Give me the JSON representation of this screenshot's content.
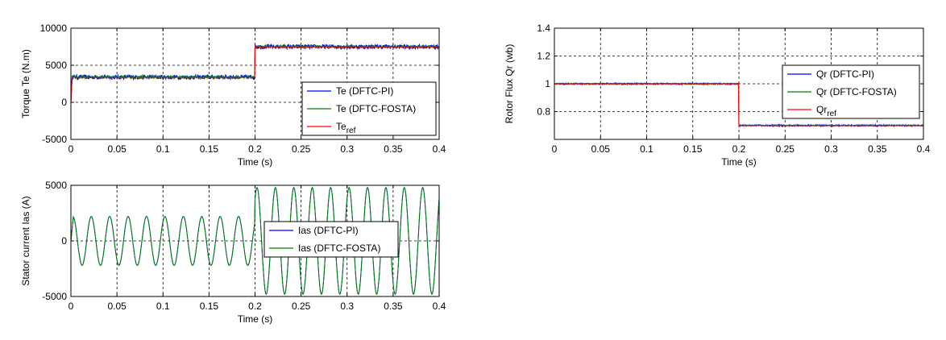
{
  "chart_data": [
    {
      "id": "torque",
      "type": "line",
      "xlabel": "Time (s)",
      "ylabel": "Torque Te (N.m)",
      "xlim": [
        0,
        0.4
      ],
      "ylim": [
        -5000,
        10000
      ],
      "xticks": [
        "0",
        "0.05",
        "0.1",
        "0.15",
        "0.2",
        "0.25",
        "0.3",
        "0.35",
        "0.4"
      ],
      "yticks": [
        "-5000",
        "0",
        "5000",
        "10000"
      ],
      "grid": true,
      "legend_position": "lower-right",
      "series": [
        {
          "name": "Te (DFTC-PI)",
          "color": "#0000ff",
          "step_time": 0.2,
          "level_before": 3400,
          "level_after": 7500,
          "ripple": 600
        },
        {
          "name": "Te (DFTC-FOSTA)",
          "color": "#008000",
          "step_time": 0.2,
          "level_before": 3400,
          "level_after": 7500,
          "ripple": 300
        },
        {
          "name": "Te",
          "name_subscript": "ref",
          "color": "#ff0000",
          "step_time": 0.2,
          "level_before": 3400,
          "level_after": 7500,
          "ripple": 0
        }
      ]
    },
    {
      "id": "flux",
      "type": "line",
      "xlabel": "Time (s)",
      "ylabel": "Rotor Flux Qr (wb)",
      "xlim": [
        0,
        0.4
      ],
      "ylim": [
        0.6,
        1.4
      ],
      "xticks": [
        "0",
        "0.05",
        "0.1",
        "0.15",
        "0.2",
        "0.25",
        "0.3",
        "0.35",
        "0.4"
      ],
      "yticks": [
        "0.8",
        "1",
        "1.2",
        "1.4"
      ],
      "grid": true,
      "legend_position": "top-right",
      "series": [
        {
          "name": "Qr (DFTC-PI)",
          "color": "#0000ff",
          "step_time": 0.2,
          "level_before": 1.0,
          "level_after": 0.7,
          "ripple": 0.012
        },
        {
          "name": "Qr (DFTC-FOSTA)",
          "color": "#008000",
          "step_time": 0.2,
          "level_before": 1.0,
          "level_after": 0.7,
          "ripple": 0.008
        },
        {
          "name": "Qr",
          "name_subscript": "ref",
          "color": "#ff0000",
          "step_time": 0.2,
          "level_before": 1.0,
          "level_after": 0.7,
          "ripple": 0
        }
      ]
    },
    {
      "id": "current",
      "type": "line",
      "xlabel": "Time (s)",
      "ylabel": "Stator current Ias (A)",
      "xlim": [
        0,
        0.4
      ],
      "ylim": [
        -5000,
        5000
      ],
      "xticks": [
        "0",
        "0.05",
        "0.1",
        "0.15",
        "0.2",
        "0.25",
        "0.3",
        "0.35",
        "0.4"
      ],
      "yticks": [
        "-5000",
        "0",
        "5000"
      ],
      "grid": true,
      "legend_position": "center-right",
      "series": [
        {
          "name": "Ias (DFTC-PI)",
          "color": "#0000ff",
          "frequency_hz": 50,
          "amplitude_before": 2200,
          "amplitude_after": 4800,
          "step_time": 0.2
        },
        {
          "name": "Ias (DFTC-FOSTA)",
          "color": "#008000",
          "frequency_hz": 50,
          "amplitude_before": 2200,
          "amplitude_after": 4800,
          "step_time": 0.2
        }
      ]
    }
  ]
}
